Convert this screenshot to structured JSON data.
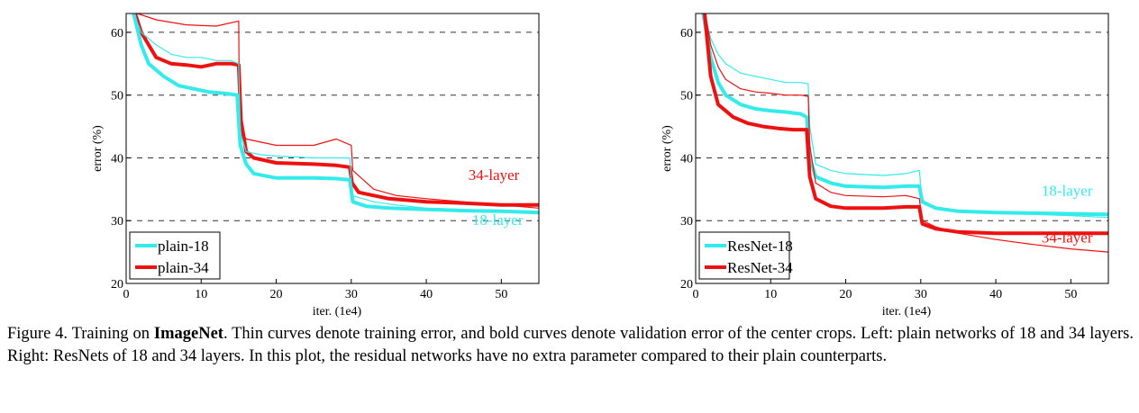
{
  "colors": {
    "cyan": "#33ebeb",
    "red": "#ee1111",
    "grid": "#333333",
    "axis": "#000000"
  },
  "chart_data": [
    {
      "type": "line",
      "xlabel": "iter. (1e4)",
      "ylabel": "error (%)",
      "xlim": [
        0,
        55
      ],
      "ylim": [
        20,
        63
      ],
      "xticks": [
        0,
        10,
        20,
        30,
        40,
        50
      ],
      "yticks": [
        20,
        30,
        40,
        50,
        60
      ],
      "grid": "horizontal dashed at 30, 40, 50, 60",
      "legend_position": "bottom-left",
      "legend": [
        "plain-18",
        "plain-34"
      ],
      "annotations": [
        {
          "text": "34-layer",
          "x": 49,
          "y": 36.5,
          "color": "#ee1111"
        },
        {
          "text": "18-layer",
          "x": 49.5,
          "y": 29.3,
          "color": "#33ebeb"
        }
      ],
      "series": [
        {
          "name": "plain-34",
          "style": "train",
          "color": "#ee1111",
          "points": [
            [
              1.5,
              63
            ],
            [
              4,
              62
            ],
            [
              8,
              61.2
            ],
            [
              12,
              61
            ],
            [
              15,
              61.8
            ],
            [
              15.1,
              45
            ],
            [
              16,
              43
            ],
            [
              20,
              42
            ],
            [
              25,
              42
            ],
            [
              28,
              43
            ],
            [
              30,
              42
            ],
            [
              30.2,
              38
            ],
            [
              33,
              35
            ],
            [
              36,
              34
            ],
            [
              40,
              33.5
            ],
            [
              45,
              33
            ],
            [
              50,
              32.5
            ],
            [
              55,
              32
            ]
          ]
        },
        {
          "name": "plain-34",
          "style": "val",
          "color": "#ee1111",
          "points": [
            [
              1.2,
              63
            ],
            [
              2,
              60
            ],
            [
              3,
              58
            ],
            [
              4,
              56
            ],
            [
              6,
              55
            ],
            [
              8,
              54.8
            ],
            [
              10,
              54.5
            ],
            [
              12,
              55
            ],
            [
              14,
              55
            ],
            [
              15,
              54.8
            ],
            [
              15.3,
              46
            ],
            [
              16,
              41
            ],
            [
              17,
              40
            ],
            [
              20,
              39.2
            ],
            [
              25,
              39
            ],
            [
              28,
              38.8
            ],
            [
              29.8,
              38.5
            ],
            [
              30.1,
              36
            ],
            [
              31,
              34.5
            ],
            [
              35,
              33.5
            ],
            [
              40,
              33
            ],
            [
              45,
              32.8
            ],
            [
              50,
              32.5
            ],
            [
              55,
              32.5
            ]
          ]
        },
        {
          "name": "plain-18",
          "style": "train",
          "color": "#33ebeb",
          "points": [
            [
              1,
              63
            ],
            [
              2,
              60
            ],
            [
              4,
              58
            ],
            [
              6,
              56.5
            ],
            [
              8,
              56
            ],
            [
              10,
              56
            ],
            [
              12,
              55.5
            ],
            [
              14,
              55.5
            ],
            [
              15,
              55
            ],
            [
              15.2,
              44
            ],
            [
              16,
              41
            ],
            [
              18,
              40.5
            ],
            [
              20,
              40.3
            ],
            [
              25,
              40
            ],
            [
              28,
              40
            ],
            [
              29.8,
              40
            ],
            [
              30.1,
              34
            ],
            [
              33,
              33
            ],
            [
              36,
              32.5
            ],
            [
              40,
              32
            ],
            [
              45,
              31.8
            ],
            [
              50,
              31.5
            ],
            [
              55,
              31.5
            ]
          ]
        },
        {
          "name": "plain-18",
          "style": "val",
          "color": "#33ebeb",
          "points": [
            [
              1,
              63
            ],
            [
              2,
              58
            ],
            [
              3,
              55
            ],
            [
              5,
              53
            ],
            [
              7,
              51.5
            ],
            [
              9,
              51
            ],
            [
              11,
              50.5
            ],
            [
              13,
              50.3
            ],
            [
              14.8,
              50
            ],
            [
              15.2,
              42
            ],
            [
              16,
              39
            ],
            [
              17,
              37.5
            ],
            [
              20,
              36.8
            ],
            [
              25,
              36.8
            ],
            [
              28,
              36.7
            ],
            [
              29.8,
              36.5
            ],
            [
              30.2,
              33
            ],
            [
              32,
              32.3
            ],
            [
              35,
              32
            ],
            [
              40,
              31.8
            ],
            [
              45,
              31.6
            ],
            [
              50,
              31.5
            ],
            [
              55,
              31.3
            ]
          ]
        }
      ]
    },
    {
      "type": "line",
      "xlabel": "iter. (1e4)",
      "ylabel": "error (%)",
      "xlim": [
        0,
        55
      ],
      "ylim": [
        20,
        63
      ],
      "xticks": [
        0,
        10,
        20,
        30,
        40,
        50
      ],
      "yticks": [
        20,
        30,
        40,
        50,
        60
      ],
      "grid": "horizontal dashed at 30, 40, 50, 60",
      "legend_position": "bottom-left",
      "legend": [
        "ResNet-18",
        "ResNet-34"
      ],
      "annotations": [
        {
          "text": "18-layer",
          "x": 49.5,
          "y": 34,
          "color": "#33ebeb"
        },
        {
          "text": "34-layer",
          "x": 49.5,
          "y": 26.5,
          "color": "#ee1111"
        }
      ],
      "series": [
        {
          "name": "ResNet-18",
          "style": "train",
          "color": "#33ebeb",
          "points": [
            [
              1.2,
              63
            ],
            [
              2,
              59
            ],
            [
              3,
              56.5
            ],
            [
              4,
              55
            ],
            [
              6,
              53.5
            ],
            [
              8,
              53
            ],
            [
              10,
              52.5
            ],
            [
              12,
              52
            ],
            [
              14,
              52
            ],
            [
              15,
              51.8
            ],
            [
              15.2,
              45
            ],
            [
              16,
              39
            ],
            [
              18,
              38
            ],
            [
              20,
              37.5
            ],
            [
              25,
              37.2
            ],
            [
              28,
              37.5
            ],
            [
              29.8,
              38
            ],
            [
              30.2,
              33
            ],
            [
              32,
              32
            ],
            [
              35,
              31.5
            ],
            [
              40,
              31.2
            ],
            [
              45,
              31
            ],
            [
              50,
              30.8
            ],
            [
              55,
              30.5
            ]
          ]
        },
        {
          "name": "ResNet-18",
          "style": "val",
          "color": "#33ebeb",
          "points": [
            [
              1,
              63
            ],
            [
              2,
              56
            ],
            [
              3,
              52
            ],
            [
              4,
              50
            ],
            [
              6,
              48.5
            ],
            [
              8,
              47.8
            ],
            [
              10,
              47.5
            ],
            [
              12,
              47.3
            ],
            [
              14,
              47
            ],
            [
              14.8,
              46.5
            ],
            [
              15.2,
              40
            ],
            [
              16,
              37
            ],
            [
              18,
              36
            ],
            [
              20,
              35.5
            ],
            [
              25,
              35.3
            ],
            [
              28,
              35.5
            ],
            [
              29.8,
              35.5
            ],
            [
              30.2,
              33
            ],
            [
              32,
              32
            ],
            [
              35,
              31.5
            ],
            [
              40,
              31.3
            ],
            [
              45,
              31.2
            ],
            [
              50,
              31.1
            ],
            [
              55,
              31
            ]
          ]
        },
        {
          "name": "ResNet-34",
          "style": "train",
          "color": "#ee1111",
          "points": [
            [
              1.3,
              63
            ],
            [
              2,
              58
            ],
            [
              3,
              54.5
            ],
            [
              4,
              52.5
            ],
            [
              6,
              51
            ],
            [
              8,
              50.5
            ],
            [
              10,
              50.3
            ],
            [
              12,
              50
            ],
            [
              14,
              50
            ],
            [
              15,
              49.8
            ],
            [
              15.2,
              42
            ],
            [
              16,
              36
            ],
            [
              18,
              34.5
            ],
            [
              20,
              34
            ],
            [
              25,
              33.8
            ],
            [
              28,
              34
            ],
            [
              29.8,
              33.5
            ],
            [
              30.2,
              30
            ],
            [
              32,
              29
            ],
            [
              35,
              28
            ],
            [
              40,
              27
            ],
            [
              45,
              26.2
            ],
            [
              50,
              25.5
            ],
            [
              55,
              25
            ]
          ]
        },
        {
          "name": "ResNet-34",
          "style": "val",
          "color": "#ee1111",
          "points": [
            [
              1.2,
              63
            ],
            [
              2,
              53
            ],
            [
              3,
              48.5
            ],
            [
              5,
              46.5
            ],
            [
              7,
              45.5
            ],
            [
              9,
              45
            ],
            [
              11,
              44.7
            ],
            [
              13,
              44.5
            ],
            [
              14.8,
              44.5
            ],
            [
              15.2,
              37
            ],
            [
              16,
              33.5
            ],
            [
              18,
              32.3
            ],
            [
              20,
              32
            ],
            [
              25,
              32
            ],
            [
              28,
              32.2
            ],
            [
              29.8,
              32.2
            ],
            [
              30.2,
              29.5
            ],
            [
              32,
              28.7
            ],
            [
              35,
              28.2
            ],
            [
              40,
              28
            ],
            [
              45,
              28
            ],
            [
              50,
              28
            ],
            [
              55,
              28
            ]
          ]
        }
      ]
    }
  ],
  "caption": {
    "prefix": "Figure 4. Training on ",
    "bold": "ImageNet",
    "rest": ". Thin curves denote training error, and bold curves denote validation error of the center crops. Left: plain networks of 18 and 34 layers. Right: ResNets of 18 and 34 layers. In this plot, the residual networks have no extra parameter compared to their plain counterparts."
  }
}
